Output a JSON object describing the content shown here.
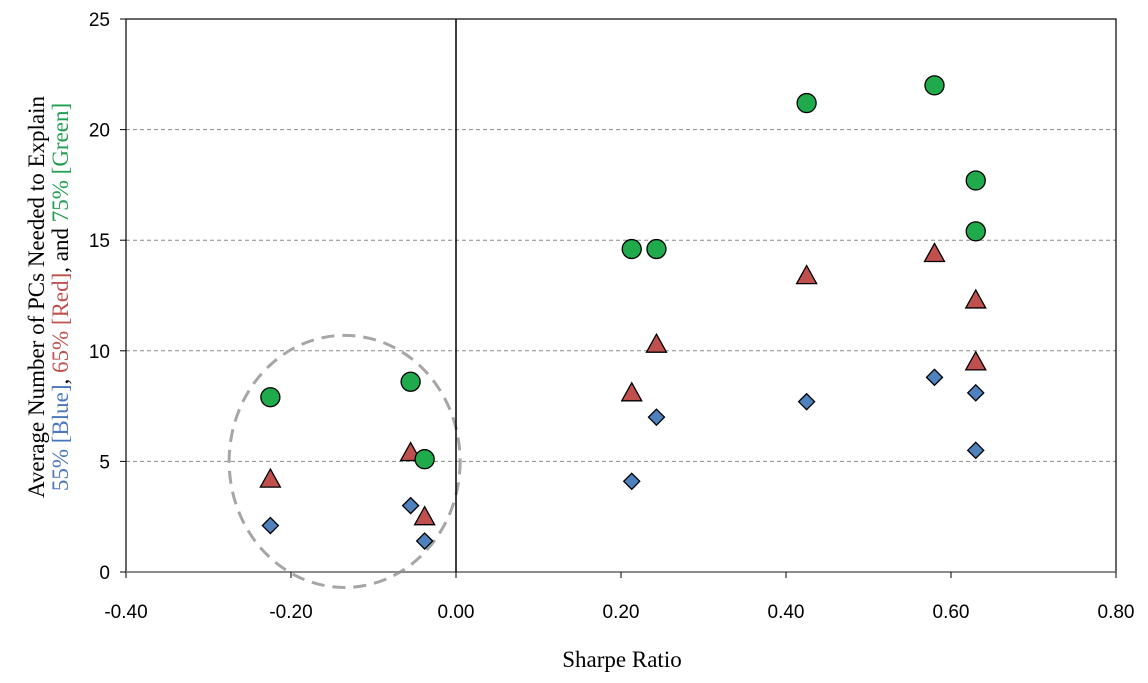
{
  "chart_data": {
    "type": "scatter",
    "xlabel": "Sharpe Ratio",
    "ylabel_line1": "Average Number of PCs Needed to Explain",
    "ylabel_line2": [
      {
        "text": "55% [Blue]",
        "color": "#4a76c0"
      },
      {
        "text": ", ",
        "color": "#000000"
      },
      {
        "text": "65% [Red]",
        "color": "#c0504d"
      },
      {
        "text": ", and ",
        "color": "#000000"
      },
      {
        "text": "75% [Green]",
        "color": "#1f9e4f"
      }
    ],
    "xlim": [
      -0.4,
      0.8
    ],
    "ylim": [
      0,
      25
    ],
    "x_ticks": [
      -0.4,
      -0.2,
      0.0,
      0.2,
      0.4,
      0.6,
      0.8
    ],
    "x_tick_labels": [
      "-0.40",
      "-0.20",
      "0.00",
      "0.20",
      "0.40",
      "0.60",
      "0.80"
    ],
    "y_ticks": [
      0,
      5,
      10,
      15,
      20,
      25
    ],
    "y_tick_labels": [
      "0",
      "5",
      "10",
      "15",
      "20",
      "25"
    ],
    "grid": "horizontal-dashed",
    "series": [
      {
        "marker": "diamond",
        "color": "#4f81bd",
        "x": [
          -0.225,
          -0.055,
          -0.038,
          0.213,
          0.243,
          0.425,
          0.58,
          0.63,
          0.63
        ],
        "y": [
          2.1,
          3.0,
          1.4,
          4.1,
          7.0,
          7.7,
          8.8,
          8.1,
          5.5
        ]
      },
      {
        "marker": "triangle",
        "color": "#c0504d",
        "x": [
          -0.225,
          -0.055,
          -0.038,
          0.213,
          0.243,
          0.425,
          0.58,
          0.63,
          0.63
        ],
        "y": [
          4.2,
          5.4,
          2.5,
          8.1,
          10.3,
          13.4,
          14.4,
          12.3,
          9.5
        ]
      },
      {
        "marker": "circle",
        "color": "#1faa4c",
        "x": [
          -0.225,
          -0.055,
          -0.038,
          0.213,
          0.243,
          0.425,
          0.58,
          0.63,
          0.63
        ],
        "y": [
          7.9,
          8.6,
          5.1,
          14.6,
          14.6,
          21.2,
          22.0,
          17.7,
          15.4
        ]
      }
    ],
    "annotation": {
      "shape": "dashed-ellipse",
      "color": "#a6a6a6",
      "center": [
        -0.135,
        5.0
      ],
      "x_radius": 0.14,
      "y_radius": 5.7
    },
    "vertical_reference_line": {
      "x": 0.0
    }
  }
}
